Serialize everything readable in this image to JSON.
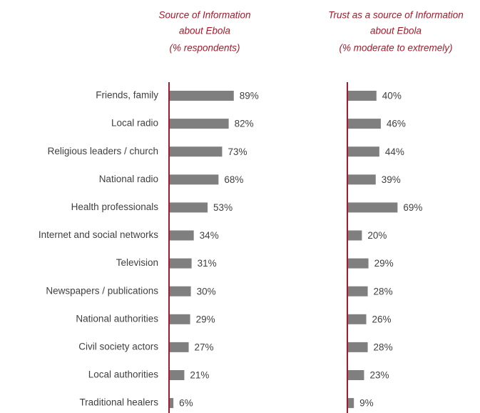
{
  "chart_data": [
    {
      "type": "bar",
      "orientation": "horizontal",
      "title": [
        "Source of Information",
        "about Ebola",
        "(% respondents)"
      ],
      "categories": [
        "Friends, family",
        "Local radio",
        "Religious leaders / church",
        "National radio",
        "Health professionals",
        "Internet and social networks",
        "Television",
        "Newspapers / publications",
        "National authorities",
        "Civil society actors",
        "Local authorities",
        "Traditional healers"
      ],
      "values": [
        89,
        82,
        73,
        68,
        53,
        34,
        31,
        30,
        29,
        27,
        21,
        6
      ],
      "value_labels": [
        "89%",
        "82%",
        "73%",
        "68%",
        "53%",
        "34%",
        "31%",
        "30%",
        "29%",
        "27%",
        "21%",
        "6%"
      ],
      "color": "#7f7f7f"
    },
    {
      "type": "bar",
      "orientation": "horizontal",
      "title": [
        "Trust as a source of Information",
        "about Ebola",
        "(% moderate to extremely)"
      ],
      "values": [
        40,
        46,
        44,
        39,
        69,
        20,
        29,
        28,
        26,
        28,
        23,
        9
      ],
      "value_labels": [
        "40%",
        "46%",
        "44%",
        "39%",
        "69%",
        "20%",
        "29%",
        "28%",
        "26%",
        "28%",
        "23%",
        "9%"
      ],
      "color": "#7f7f7f"
    }
  ]
}
